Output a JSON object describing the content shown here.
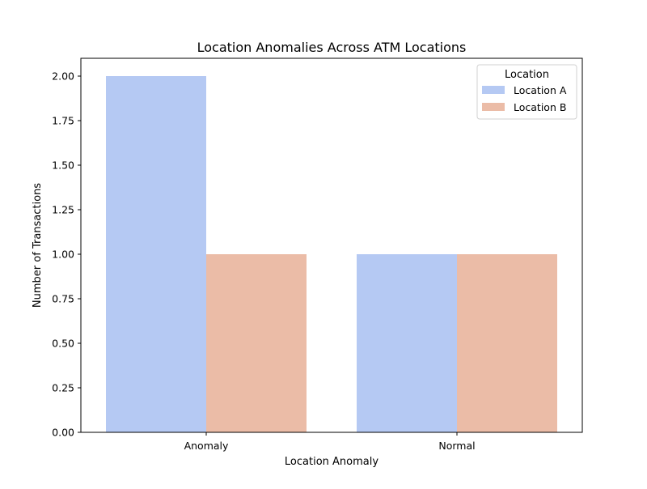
{
  "chart_data": {
    "type": "bar",
    "title": "Location Anomalies Across ATM Locations",
    "xlabel": "Location Anomaly",
    "ylabel": "Number of Transactions",
    "categories": [
      "Anomaly",
      "Normal"
    ],
    "series": [
      {
        "name": "Location A",
        "values": [
          2,
          1
        ],
        "color": "#b5c9f3"
      },
      {
        "name": "Location B",
        "values": [
          1,
          1
        ],
        "color": "#ebbca7"
      }
    ],
    "ylim": [
      0,
      2.1
    ],
    "yticks": [
      "0.00",
      "0.25",
      "0.50",
      "0.75",
      "1.00",
      "1.25",
      "1.50",
      "1.75",
      "2.00"
    ],
    "legend": {
      "title": "Location",
      "placement": "top-right"
    },
    "grid": false
  }
}
